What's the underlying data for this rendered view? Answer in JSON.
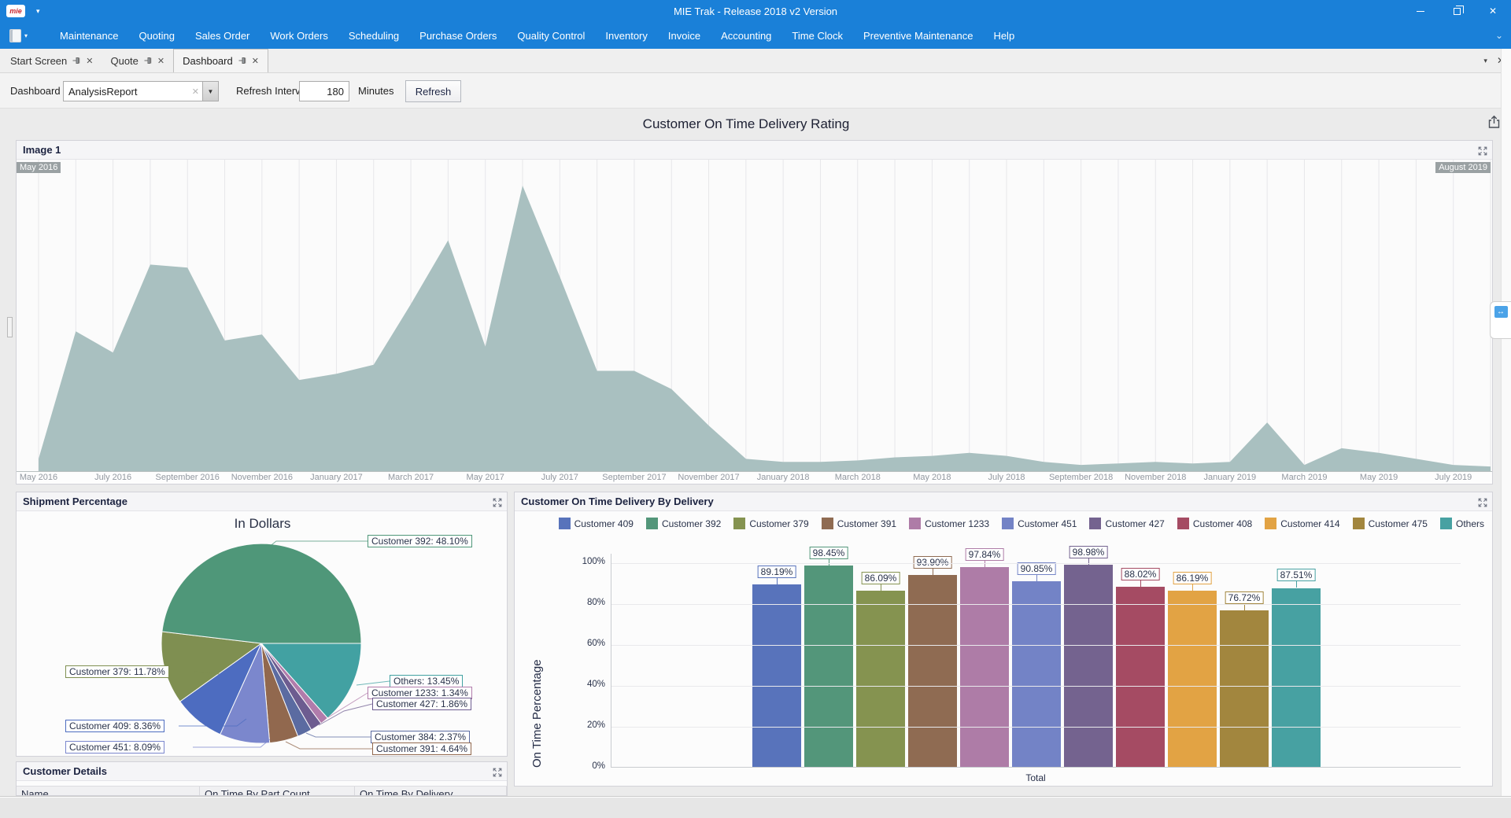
{
  "window": {
    "title": "MIE Trak - Release 2018 v2 Version"
  },
  "menu": {
    "items": [
      "Maintenance",
      "Quoting",
      "Sales Order",
      "Work Orders",
      "Scheduling",
      "Purchase Orders",
      "Quality Control",
      "Inventory",
      "Invoice",
      "Accounting",
      "Time Clock",
      "Preventive Maintenance",
      "Help"
    ]
  },
  "tabs": [
    {
      "label": "Start Screen",
      "active": false
    },
    {
      "label": "Quote",
      "active": false
    },
    {
      "label": "Dashboard",
      "active": true
    }
  ],
  "toolbar": {
    "dashboard_label": "Dashboard",
    "dashboard_value": "AnalysisReport",
    "refresh_interval_label": "Refresh Interval",
    "refresh_interval_value": "180",
    "minutes_label": "Minutes",
    "refresh_button": "Refresh"
  },
  "dashboard": {
    "title": "Customer On Time Delivery Rating"
  },
  "panels": {
    "image1": {
      "title": "Image 1"
    },
    "shipment": {
      "title": "Shipment Percentage"
    },
    "delivery": {
      "title": "Customer On Time Delivery By Delivery"
    },
    "details": {
      "title": "Customer Details",
      "columns": [
        "Name",
        "On Time By Part Count",
        "On Time By Delivery"
      ]
    }
  },
  "chart_data": [
    {
      "type": "area",
      "panel": "Image 1",
      "range_labels": [
        "May 2016",
        "August 2019"
      ],
      "x_tick_labels": [
        "May 2016",
        "July 2016",
        "September 2016",
        "November 2016",
        "January 2017",
        "March 2017",
        "May 2017",
        "July 2017",
        "September 2017",
        "November 2017",
        "January 2018",
        "March 2018",
        "May 2018",
        "July 2018",
        "September 2018",
        "November 2018",
        "January 2019",
        "March 2019",
        "May 2019",
        "July 2019"
      ],
      "values": [
        3,
        45,
        38,
        67,
        66,
        42,
        44,
        29,
        31,
        34,
        54,
        75,
        40,
        93,
        63,
        32,
        32,
        26,
        14,
        3,
        2,
        2,
        2.5,
        3.5,
        4,
        5,
        4,
        2,
        1,
        1.5,
        2,
        1.5,
        2,
        15,
        1,
        6.5,
        5,
        3,
        1,
        0.5
      ],
      "ylim": [
        0,
        100
      ],
      "fill_color": "#a9c0c0",
      "grid": "vertical-monthly"
    },
    {
      "type": "pie",
      "title": "In Dollars",
      "direction": "clockwise",
      "start_angle": "east",
      "slices": [
        {
          "label": "Others",
          "value": 13.45,
          "color": "#42a1a2"
        },
        {
          "label": "Customer 1233",
          "value": 1.34,
          "color": "#b17cab"
        },
        {
          "label": "Customer 427",
          "value": 1.86,
          "color": "#6d5c90"
        },
        {
          "label": "Customer 384",
          "value": 2.37,
          "color": "#5b6ba1"
        },
        {
          "label": "Customer 391",
          "value": 4.64,
          "color": "#91684e"
        },
        {
          "label": "Customer 451",
          "value": 8.09,
          "color": "#7b87cd"
        },
        {
          "label": "Customer 409",
          "value": 8.36,
          "color": "#4d6cc0"
        },
        {
          "label": "Customer 379",
          "value": 11.78,
          "color": "#7f8f51"
        },
        {
          "label": "Customer 392",
          "value": 48.1,
          "color": "#4f9779"
        }
      ]
    },
    {
      "type": "bar",
      "title": "Customer On Time Delivery By Delivery",
      "categories": [
        "Customer 409",
        "Customer 392",
        "Customer 379",
        "Customer 391",
        "Customer 1233",
        "Customer 451",
        "Customer 427",
        "Customer 408",
        "Customer 414",
        "Customer 475",
        "Others"
      ],
      "values": [
        89.19,
        98.45,
        86.09,
        93.9,
        97.84,
        90.85,
        98.98,
        88.02,
        86.19,
        76.72,
        87.51
      ],
      "colors": [
        "#5873bb",
        "#53967a",
        "#859350",
        "#8f6b52",
        "#ae7ca7",
        "#7383c6",
        "#74638f",
        "#a54b63",
        "#e2a344",
        "#a2863e",
        "#47a1a2"
      ],
      "xlabel": "Total",
      "ylabel": "On Time Percentage",
      "ylim": [
        0,
        100
      ],
      "y_ticks": [
        "0%",
        "20%",
        "40%",
        "60%",
        "80%",
        "100%"
      ],
      "legend_position": "top-right"
    }
  ]
}
